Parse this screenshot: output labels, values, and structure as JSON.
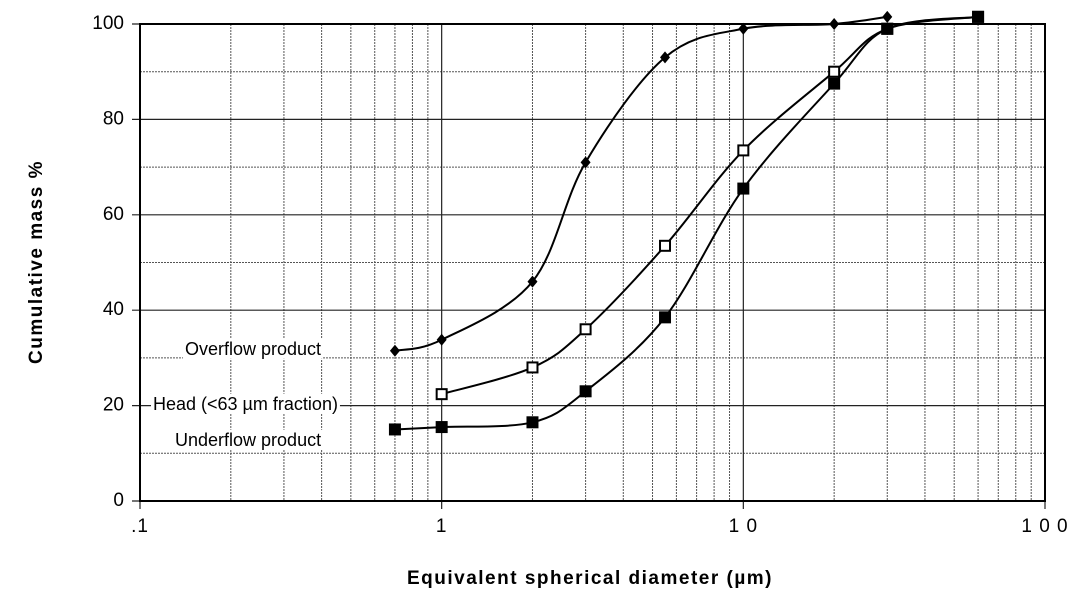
{
  "chart_data": {
    "type": "line",
    "y_label": "Cumulative mass %",
    "x_label": "Equivalent spherical diameter (µm)",
    "log_x": true,
    "grid": true,
    "xlim": [
      0.1,
      100
    ],
    "xticks": [
      {
        "value": 0.1,
        "label": ".1"
      },
      1,
      {
        "value": 10,
        "label": "1 0"
      },
      {
        "value": 100,
        "label": "1 0 0"
      }
    ],
    "ylim": [
      0,
      100
    ],
    "yticks": [
      0,
      20,
      40,
      60,
      80,
      100
    ],
    "series": [
      {
        "name": "Overflow product",
        "color": "#000000",
        "marker": "diamond",
        "x": [
          0.7,
          1,
          2,
          3,
          5.5,
          10,
          20,
          30
        ],
        "values": [
          31.5,
          33.8,
          46,
          71,
          93,
          99,
          100,
          101.5
        ]
      },
      {
        "name": "Head (<63 µm fraction)",
        "color": "#000000",
        "marker": "open-square",
        "x": [
          1,
          2,
          3,
          5.5,
          10,
          20,
          30,
          60
        ],
        "values": [
          22.4,
          28,
          36,
          53.5,
          73.5,
          90,
          99,
          101.5
        ]
      },
      {
        "name": "Underflow product",
        "color": "#000000",
        "marker": "square",
        "x": [
          0.7,
          1,
          2,
          3,
          5.5,
          10,
          20,
          30,
          60
        ],
        "values": [
          15,
          15.5,
          16.5,
          23,
          38.5,
          65.5,
          87.5,
          99,
          101.5
        ]
      }
    ]
  }
}
